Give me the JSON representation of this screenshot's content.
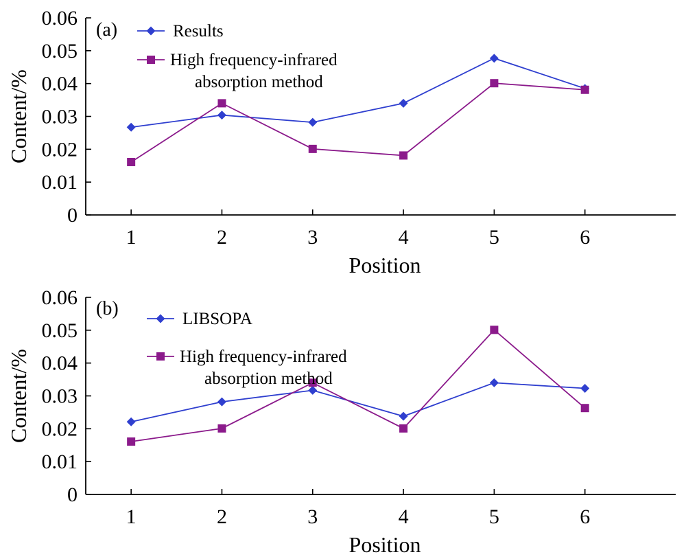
{
  "chart_data": [
    {
      "type": "line",
      "panel_label": "(a)",
      "xlabel": "Position",
      "ylabel": "Content/%",
      "x": [
        1,
        2,
        3,
        4,
        5,
        6
      ],
      "xlim": [
        0.5,
        7
      ],
      "ylim": [
        0,
        0.06
      ],
      "x_ticks": [
        "1",
        "2",
        "3",
        "4",
        "5",
        "6"
      ],
      "y_ticks": [
        "0",
        "0.01",
        "0.02",
        "0.03",
        "0.04",
        "0.05",
        "0.06"
      ],
      "grid": false,
      "legend_position": "top-left",
      "series": [
        {
          "name": "Results",
          "marker": "diamond",
          "color": "#2f3fcf",
          "values": [
            0.0267,
            0.0304,
            0.0282,
            0.034,
            0.0477,
            0.0385
          ]
        },
        {
          "name": "High frequency-infrared absorption method",
          "name_lines": [
            "High frequency-infrared",
            "absorption method"
          ],
          "marker": "square",
          "color": "#8b1a8b",
          "values": [
            0.0161,
            0.034,
            0.0201,
            0.0181,
            0.0401,
            0.0381
          ]
        }
      ]
    },
    {
      "type": "line",
      "panel_label": "(b)",
      "xlabel": "Position",
      "ylabel": "Content/%",
      "x": [
        1,
        2,
        3,
        4,
        5,
        6
      ],
      "xlim": [
        0.5,
        7
      ],
      "ylim": [
        0,
        0.06
      ],
      "x_ticks": [
        "1",
        "2",
        "3",
        "4",
        "5",
        "6"
      ],
      "y_ticks": [
        "0",
        "0.01",
        "0.02",
        "0.03",
        "0.04",
        "0.05",
        "0.06"
      ],
      "grid": false,
      "legend_position": "top-left",
      "series": [
        {
          "name": "LIBSOPA",
          "marker": "diamond",
          "color": "#2f3fcf",
          "values": [
            0.0221,
            0.0282,
            0.0317,
            0.0238,
            0.034,
            0.0323
          ]
        },
        {
          "name": "High frequency-infrared absorption method",
          "name_lines": [
            "High frequency-infrared",
            "absorption method"
          ],
          "marker": "square",
          "color": "#8b1a8b",
          "values": [
            0.0161,
            0.0201,
            0.034,
            0.0201,
            0.0501,
            0.0263
          ]
        }
      ]
    }
  ]
}
